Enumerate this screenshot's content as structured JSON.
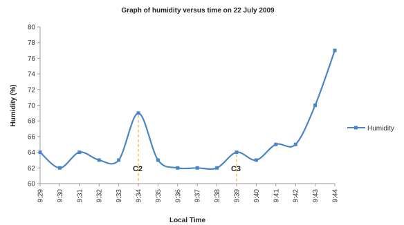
{
  "chart_data": {
    "type": "line",
    "title": "Graph of humidity versus time on 22 July 2009",
    "xlabel": "Local Time",
    "ylabel": "Humidity (%)",
    "categories": [
      "9:29",
      "9:30",
      "9:31",
      "9:32",
      "9:33",
      "9:34",
      "9:35",
      "9:36",
      "9:37",
      "9:38",
      "9:39",
      "9:40",
      "9:41",
      "9:42",
      "9:43",
      "9:44"
    ],
    "ylim": [
      60,
      80
    ],
    "yticks": [
      "60",
      "62",
      "64",
      "66",
      "68",
      "70",
      "72",
      "74",
      "76",
      "78",
      "80"
    ],
    "grid": false,
    "legend_position": "right",
    "series": [
      {
        "name": "Humidity",
        "color": "#4a86c5",
        "values": [
          64,
          62,
          64,
          63,
          63,
          69,
          63,
          62,
          62,
          62,
          64,
          63,
          65,
          65,
          70,
          77
        ]
      }
    ],
    "annotations": [
      {
        "label": "C2",
        "x": "9:34",
        "color": "#f2b134"
      },
      {
        "label": "C3",
        "x": "9:39",
        "color": "#f2b134"
      }
    ]
  }
}
